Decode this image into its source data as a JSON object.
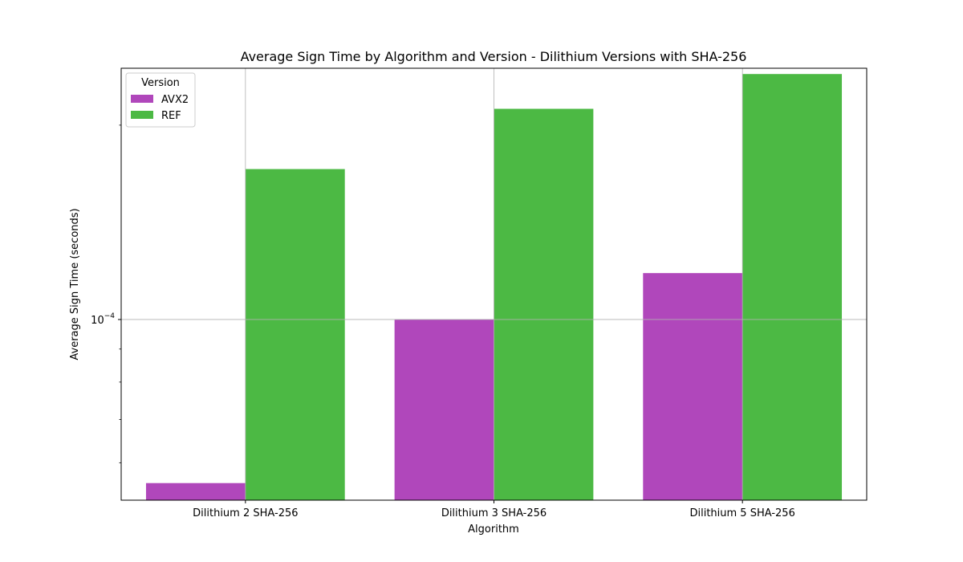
{
  "chart_data": {
    "type": "bar",
    "title": "Average Sign Time by Algorithm and Version - Dilithium Versions with SHA-256",
    "xlabel": "Algorithm",
    "ylabel": "Average Sign Time (seconds)",
    "yscale": "log",
    "ylim": [
      5.25e-05,
      0.000245
    ],
    "major_tick": {
      "value": 0.0001,
      "base": "10",
      "exponent": "−4"
    },
    "minor_ticks": [
      6e-05,
      7e-05,
      8e-05,
      9e-05,
      0.0002
    ],
    "grid": true,
    "categories": [
      "Dilithium 2 SHA-256",
      "Dilithium 3 SHA-256",
      "Dilithium 5 SHA-256"
    ],
    "series": [
      {
        "name": "AVX2",
        "color": "#b047bb",
        "values": [
          5.58e-05,
          0.0001,
          0.000118
        ]
      },
      {
        "name": "REF",
        "color": "#4cb944",
        "values": [
          0.000171,
          0.000212,
          0.00024
        ]
      }
    ],
    "legend": {
      "title": "Version",
      "placement": "top-left"
    }
  }
}
